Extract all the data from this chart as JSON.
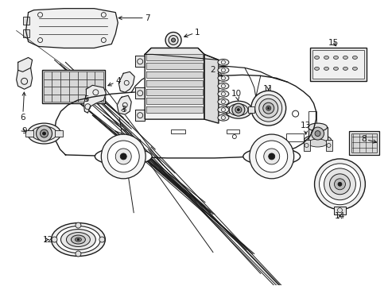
{
  "background_color": "#ffffff",
  "line_color": "#1a1a1a",
  "fig_width": 4.89,
  "fig_height": 3.6,
  "dpi": 100,
  "labels": {
    "1": [
      245,
      42,
      222,
      52,
      230,
      52
    ],
    "2": [
      268,
      98,
      252,
      98,
      260,
      98
    ],
    "3": [
      157,
      138,
      150,
      138,
      155,
      138
    ],
    "4": [
      148,
      108,
      128,
      108,
      138,
      108
    ],
    "5": [
      115,
      128,
      108,
      128,
      112,
      128
    ],
    "6": [
      38,
      148,
      28,
      148,
      33,
      148
    ],
    "7": [
      178,
      22,
      148,
      28,
      163,
      25
    ],
    "8": [
      458,
      178,
      445,
      178,
      452,
      178
    ],
    "9": [
      42,
      168,
      32,
      168,
      37,
      168
    ],
    "10": [
      298,
      122,
      298,
      132,
      298,
      127
    ],
    "11": [
      332,
      122,
      332,
      132,
      332,
      127
    ],
    "12": [
      78,
      302,
      68,
      302,
      73,
      302
    ],
    "13": [
      392,
      172,
      382,
      172,
      387,
      172
    ],
    "14": [
      428,
      248,
      428,
      258,
      428,
      253
    ],
    "15": [
      422,
      72,
      422,
      82,
      422,
      77
    ]
  }
}
